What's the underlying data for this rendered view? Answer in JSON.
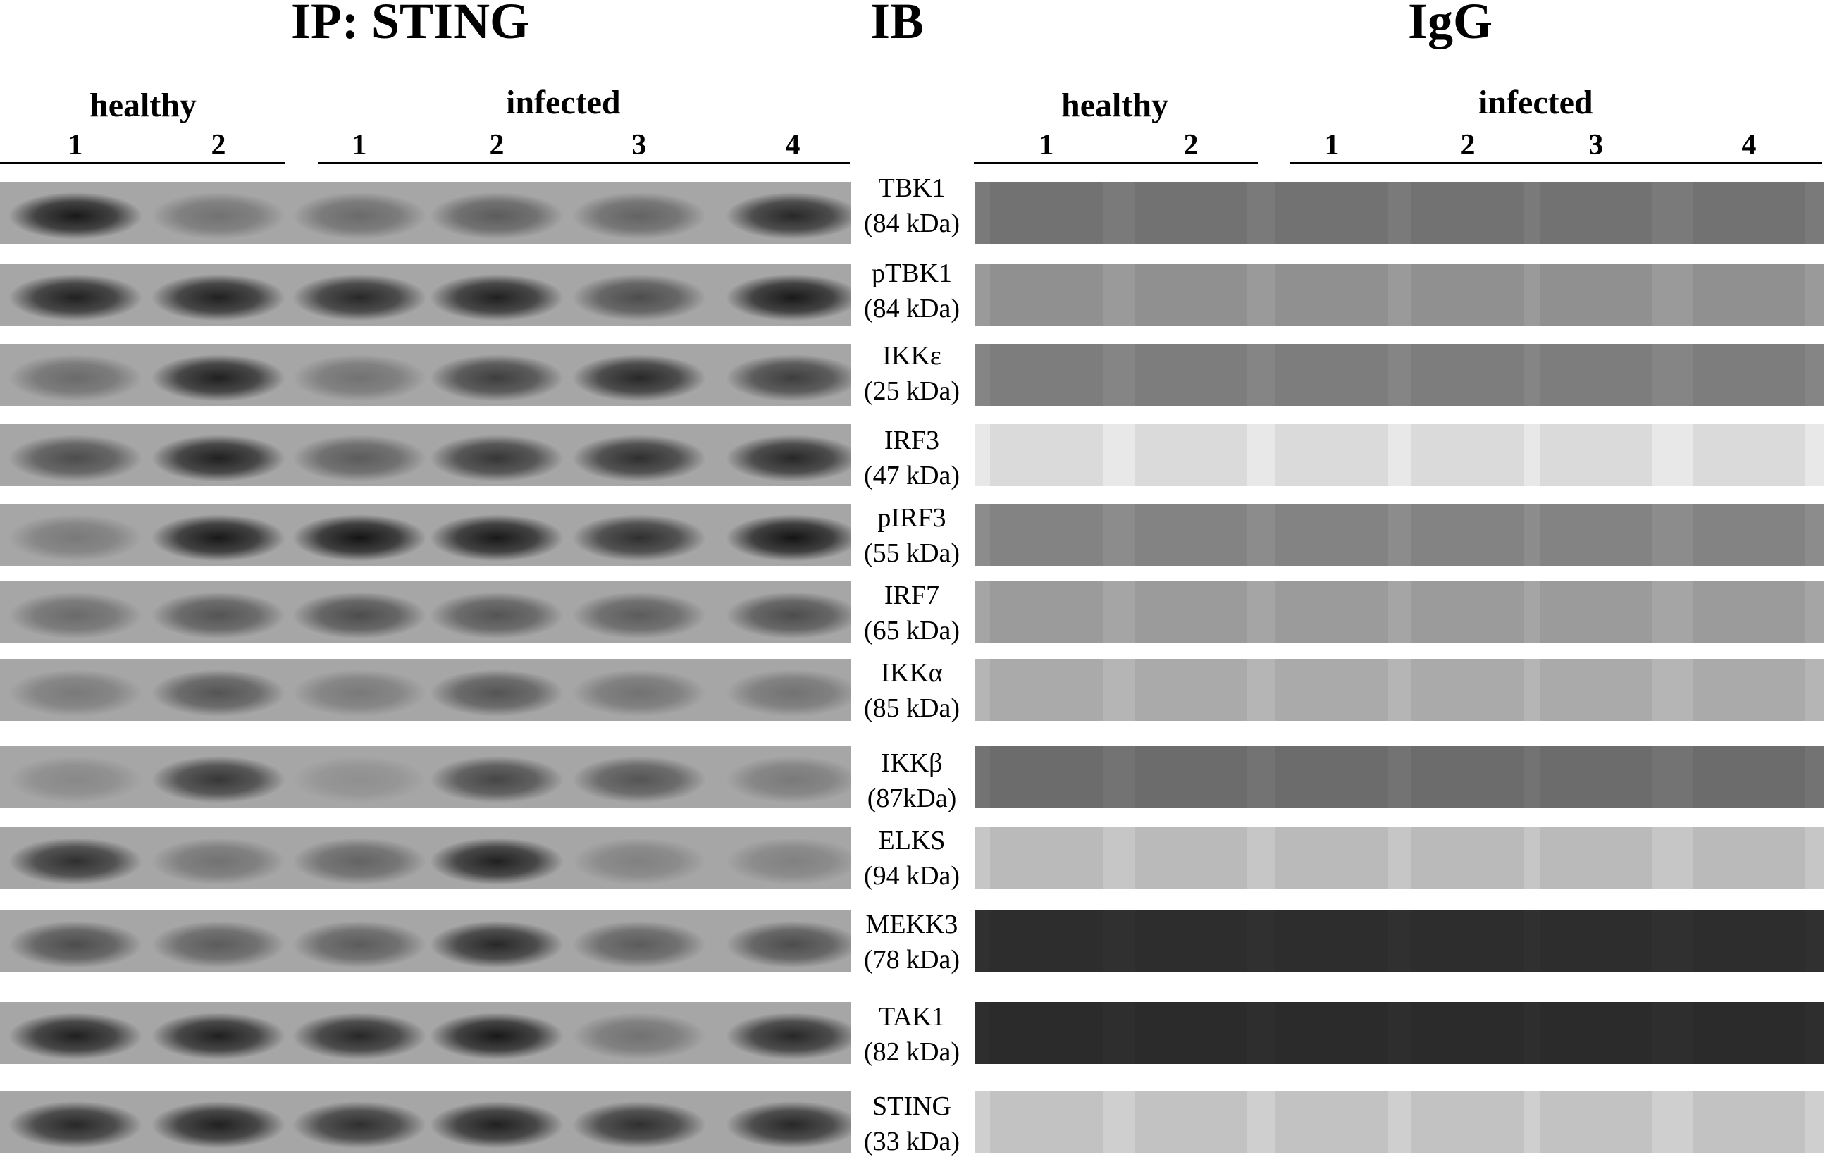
{
  "titles": {
    "ip": "IP: STING",
    "ib": "IB",
    "igg": "IgG"
  },
  "groups": {
    "healthy": "healthy",
    "infected": "infected"
  },
  "lanes": {
    "healthy": [
      "1",
      "2"
    ],
    "infected": [
      "1",
      "2",
      "3",
      "4"
    ]
  },
  "colors": {
    "ip_background": "#a6a6a6",
    "band": "#111111",
    "igg_background": "#8f8f8f"
  },
  "rows": [
    {
      "protein": "TBK1",
      "size": "(84 kDa)",
      "ip": [
        0.95,
        0.35,
        0.4,
        0.5,
        0.45,
        0.85
      ],
      "igg_tone": "#7a7a7a"
    },
    {
      "protein": "pTBK1",
      "size": "(84 kDa)",
      "ip": [
        0.9,
        0.9,
        0.85,
        0.9,
        0.6,
        0.95
      ],
      "igg_tone": "#9a9a9a"
    },
    {
      "protein": "IKKε",
      "size": "(25 kDa)",
      "ip": [
        0.4,
        0.9,
        0.35,
        0.7,
        0.85,
        0.7
      ],
      "igg_tone": "#858585"
    },
    {
      "protein": "IRF3",
      "size": "(47 kDa)",
      "ip": [
        0.6,
        0.9,
        0.5,
        0.75,
        0.8,
        0.85
      ],
      "igg_tone": "#e8e8e8"
    },
    {
      "protein": "pIRF3",
      "size": "(55 kDa)",
      "ip": [
        0.3,
        0.95,
        0.98,
        0.95,
        0.8,
        0.98
      ],
      "igg_tone": "#8c8c8c"
    },
    {
      "protein": "IRF7",
      "size": "(65 kDa)",
      "ip": [
        0.4,
        0.55,
        0.6,
        0.55,
        0.5,
        0.6
      ],
      "igg_tone": "#a5a5a5"
    },
    {
      "protein": "IKKα",
      "size": "(85 kDa)",
      "ip": [
        0.3,
        0.55,
        0.3,
        0.55,
        0.35,
        0.35
      ],
      "igg_tone": "#b5b5b5"
    },
    {
      "protein": "IKKβ",
      "size": "(87kDa)",
      "ip": [
        0.2,
        0.75,
        0.15,
        0.65,
        0.55,
        0.3
      ],
      "igg_tone": "#737373"
    },
    {
      "protein": "ELKS",
      "size": "(94 kDa)",
      "ip": [
        0.8,
        0.35,
        0.45,
        0.9,
        0.25,
        0.25
      ],
      "igg_tone": "#c6c6c6"
    },
    {
      "protein": "MEKK3",
      "size": "(78 kDa)",
      "ip": [
        0.6,
        0.5,
        0.5,
        0.85,
        0.5,
        0.6
      ],
      "igg_tone": "#303030"
    },
    {
      "protein": "TAK1",
      "size": "(82 kDa)",
      "ip": [
        0.9,
        0.9,
        0.85,
        0.95,
        0.35,
        0.85
      ],
      "igg_tone": "#2e2e2e"
    },
    {
      "protein": "STING",
      "size": "(33 kDa)",
      "ip": [
        0.85,
        0.9,
        0.8,
        0.9,
        0.8,
        0.85
      ],
      "igg_tone": "#cfcfcf"
    }
  ]
}
